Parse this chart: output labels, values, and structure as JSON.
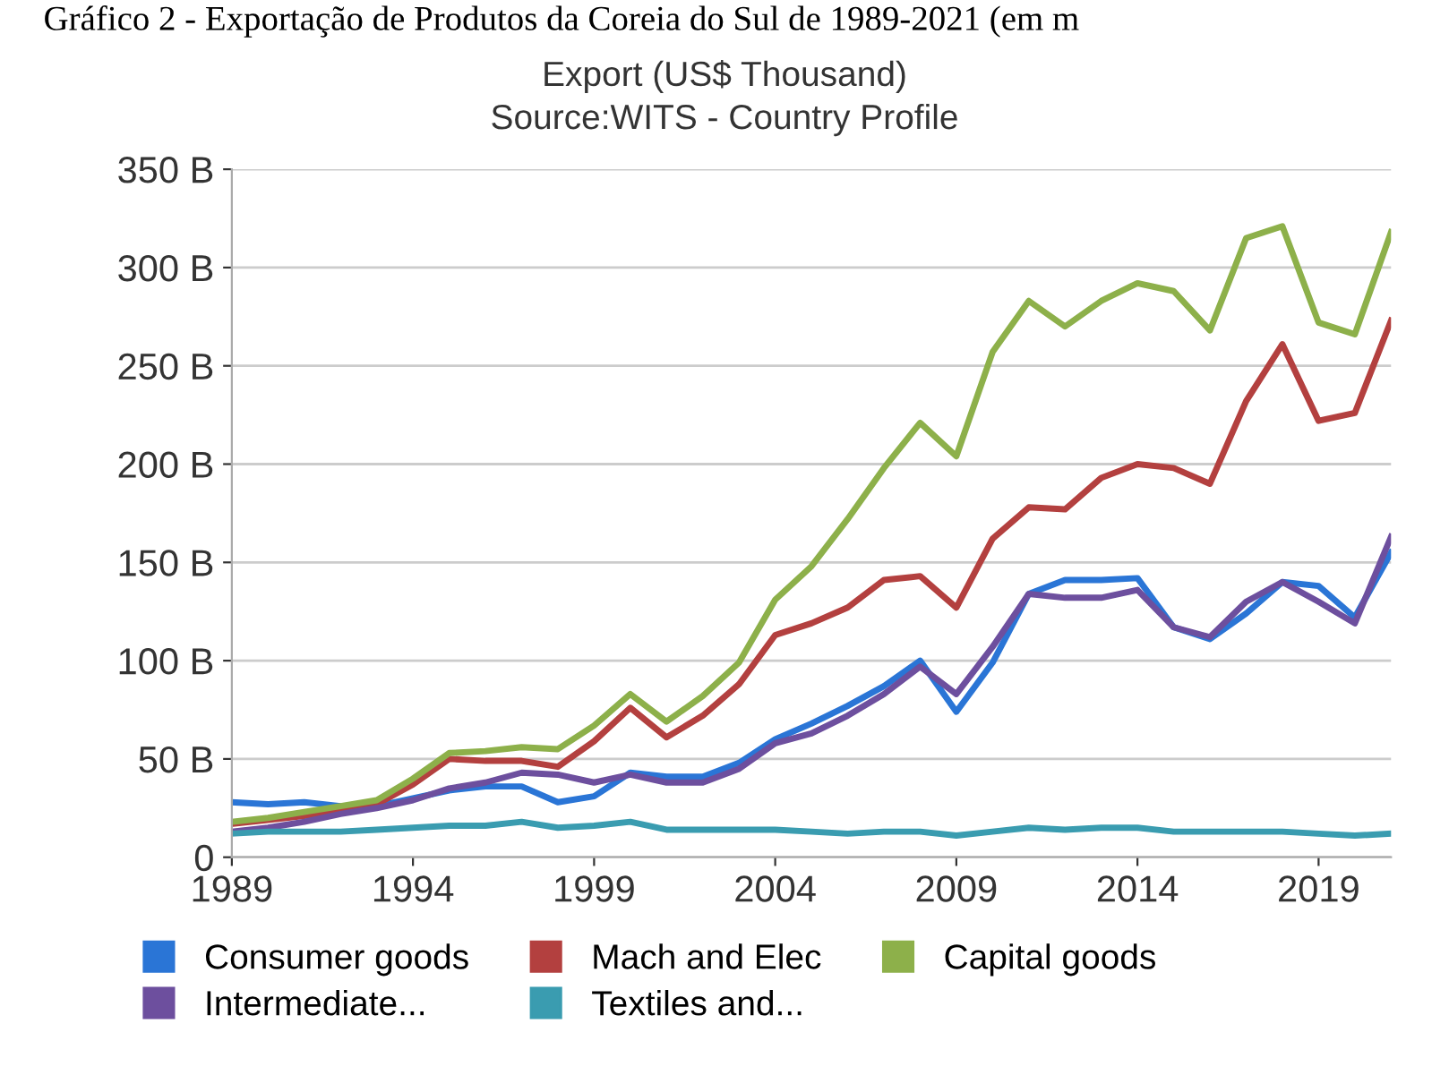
{
  "chart_data": {
    "type": "line",
    "title": "Export (US$ Thousand)",
    "subtitle": "Source:WITS - Country Profile",
    "annotations": [
      "Gráfico 2 - Exportação de Produtos da Coreia do Sul de 1989-2021 (em m"
    ],
    "x": [
      1989,
      1990,
      1991,
      1992,
      1993,
      1994,
      1995,
      1996,
      1997,
      1998,
      1999,
      2000,
      2001,
      2002,
      2003,
      2004,
      2005,
      2006,
      2007,
      2008,
      2009,
      2010,
      2011,
      2012,
      2013,
      2014,
      2015,
      2016,
      2017,
      2018,
      2019,
      2020,
      2021
    ],
    "series": [
      {
        "name": "Consumer goods",
        "color": "#2a75d6",
        "values": [
          28,
          27,
          28,
          26,
          26,
          30,
          34,
          36,
          36,
          28,
          31,
          43,
          41,
          41,
          48,
          60,
          68,
          77,
          87,
          100,
          74,
          99,
          134,
          141,
          141,
          142,
          117,
          111,
          124,
          140,
          138,
          122,
          155
        ]
      },
      {
        "name": "Mach and Elec",
        "color": "#b3403f",
        "values": [
          17,
          19,
          21,
          24,
          27,
          37,
          50,
          49,
          49,
          46,
          59,
          76,
          61,
          72,
          88,
          113,
          119,
          127,
          141,
          143,
          127,
          162,
          178,
          177,
          193,
          200,
          198,
          190,
          232,
          261,
          222,
          226,
          273
        ]
      },
      {
        "name": "Capital goods",
        "color": "#8db04a",
        "values": [
          18,
          20,
          23,
          26,
          29,
          40,
          53,
          54,
          56,
          55,
          67,
          83,
          69,
          82,
          99,
          131,
          148,
          172,
          198,
          221,
          204,
          257,
          283,
          270,
          283,
          292,
          288,
          268,
          315,
          321,
          272,
          266,
          318
        ]
      },
      {
        "name": "Intermediate...",
        "color": "#6d4f9e",
        "values": [
          13,
          15,
          18,
          22,
          25,
          29,
          35,
          38,
          43,
          42,
          38,
          42,
          38,
          38,
          45,
          58,
          63,
          72,
          83,
          97,
          83,
          107,
          134,
          132,
          132,
          136,
          117,
          112,
          130,
          140,
          130,
          119,
          163
        ]
      },
      {
        "name": "Textiles and...",
        "color": "#3a9cb0",
        "values": [
          12,
          13,
          13,
          13,
          14,
          15,
          16,
          16,
          18,
          15,
          16,
          18,
          14,
          14,
          14,
          14,
          13,
          12,
          13,
          13,
          11,
          13,
          15,
          14,
          15,
          15,
          13,
          13,
          13,
          13,
          12,
          11,
          12
        ]
      }
    ],
    "xlim": [
      1989,
      2021
    ],
    "xticks": [
      1989,
      1994,
      1999,
      2004,
      2009,
      2014,
      2019
    ],
    "ylim": [
      0,
      350
    ],
    "yticks": [
      0,
      {
        "value": 50,
        "label": "50 B"
      },
      {
        "value": 100,
        "label": "100 B"
      },
      {
        "value": 150,
        "label": "150 B"
      },
      {
        "value": 200,
        "label": "200 B"
      },
      {
        "value": 250,
        "label": "250 B"
      },
      {
        "value": 300,
        "label": "300 B"
      },
      {
        "value": 350,
        "label": "350 B"
      }
    ],
    "grid": "y",
    "legend": "bottom",
    "marker": "none",
    "line_style": "solid"
  }
}
